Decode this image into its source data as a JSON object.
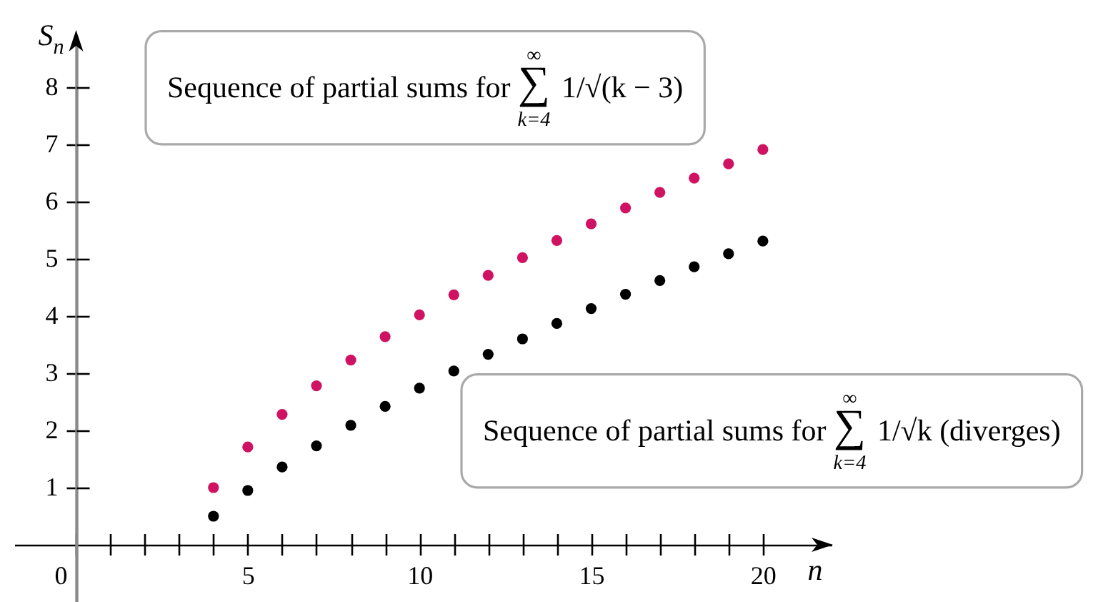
{
  "chart_data": {
    "type": "scatter",
    "xlabel": "n",
    "ylabel": "S$_{n}$",
    "x": [
      4,
      5,
      6,
      7,
      8,
      9,
      10,
      11,
      12,
      13,
      14,
      15,
      16,
      17,
      18,
      19,
      20
    ],
    "series": [
      {
        "name": "Sequence of partial sums for ∑$_{k=4}$$^{∞}$ 1/√(k − 3)",
        "color": "#cf1261",
        "values": [
          1.0,
          1.71,
          2.28,
          2.78,
          3.23,
          3.64,
          4.02,
          4.37,
          4.71,
          5.02,
          5.32,
          5.61,
          5.89,
          6.16,
          6.41,
          6.66,
          6.91
        ]
      },
      {
        "name": "Sequence of partial sums for ∑$_{k=4}$$^{∞}$ 1/√k (diverges)",
        "color": "#000000",
        "values": [
          0.5,
          0.95,
          1.36,
          1.73,
          2.09,
          2.42,
          2.74,
          3.04,
          3.33,
          3.6,
          3.87,
          4.13,
          4.38,
          4.62,
          4.86,
          5.09,
          5.31
        ]
      }
    ],
    "xlim": [
      -1.8,
      22
    ],
    "ylim": [
      -1,
      8.9
    ],
    "xticks": [
      0,
      {
        "value": 1,
        "label": null
      },
      {
        "value": 2,
        "label": null
      },
      {
        "value": 3,
        "label": null
      },
      {
        "value": 4,
        "label": null
      },
      5,
      {
        "value": 6,
        "label": null
      },
      {
        "value": 7,
        "label": null
      },
      {
        "value": 8,
        "label": null
      },
      {
        "value": 9,
        "label": null
      },
      10,
      {
        "value": 11,
        "label": null
      },
      {
        "value": 12,
        "label": null
      },
      {
        "value": 13,
        "label": null
      },
      {
        "value": 14,
        "label": null
      },
      15,
      {
        "value": 16,
        "label": null
      },
      {
        "value": 17,
        "label": null
      },
      {
        "value": 18,
        "label": null
      },
      {
        "value": 19,
        "label": null
      },
      20
    ],
    "yticks": [
      1,
      2,
      3,
      4,
      5,
      6,
      7,
      8
    ],
    "marker": "circle"
  }
}
